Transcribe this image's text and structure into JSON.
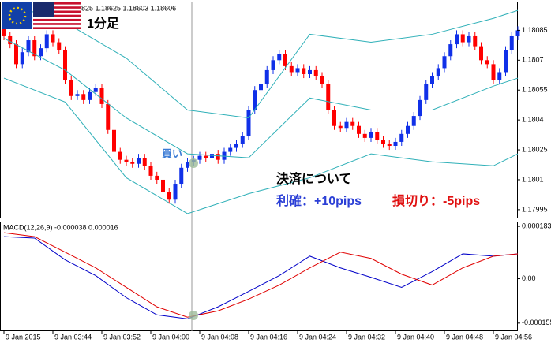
{
  "chart_data": [
    {
      "type": "candlestick",
      "header": "825 1.18625 1.18603 1.18606",
      "title": "1分足",
      "open": [
        1.18088,
        1.18082,
        1.18078,
        1.18068,
        1.18074,
        1.1808,
        1.18072,
        1.18076,
        1.18083,
        1.18079,
        1.18075,
        1.1806,
        1.18052,
        1.18053,
        1.1805,
        1.18054,
        1.18056,
        1.18048,
        1.18035,
        1.18024,
        1.1802,
        1.18019,
        1.18018,
        1.18021,
        1.18017,
        1.18012,
        1.1801,
        1.18004,
        1.18,
        1.18008,
        1.18016,
        1.18019,
        1.1802,
        1.18022,
        1.18021,
        1.18023,
        1.1802,
        1.18024,
        1.18026,
        1.18028,
        1.18032,
        1.18045,
        1.18055,
        1.18058,
        1.18065,
        1.1807,
        1.18073,
        1.18067,
        1.18064,
        1.18066,
        1.18063,
        1.18065,
        1.18062,
        1.18058,
        1.18045,
        1.18037,
        1.18036,
        1.18039,
        1.18037,
        1.18033,
        1.18031,
        1.18034,
        1.1803,
        1.18028,
        1.18027,
        1.18029,
        1.18033,
        1.18037,
        1.18042,
        1.1805,
        1.18058,
        1.18062,
        1.18066,
        1.18072,
        1.18078,
        1.18083,
        1.18079,
        1.18082,
        1.18077,
        1.1807,
        1.18068,
        1.1806,
        1.18064,
        1.18075,
        1.18082
      ],
      "high": [
        1.1809,
        1.18084,
        1.1808,
        1.18076,
        1.18082,
        1.18082,
        1.18078,
        1.18085,
        1.18085,
        1.18081,
        1.18077,
        1.18062,
        1.18055,
        1.18055,
        1.18056,
        1.18058,
        1.18058,
        1.1805,
        1.18037,
        1.18026,
        1.18022,
        1.18021,
        1.18023,
        1.18023,
        1.18019,
        1.18014,
        1.18012,
        1.18006,
        1.1801,
        1.18018,
        1.18021,
        1.18022,
        1.18024,
        1.18024,
        1.18025,
        1.18025,
        1.18026,
        1.18028,
        1.1803,
        1.18034,
        1.18047,
        1.18057,
        1.1806,
        1.18067,
        1.18072,
        1.18075,
        1.18075,
        1.18069,
        1.18068,
        1.18068,
        1.18067,
        1.18067,
        1.18064,
        1.1806,
        1.18047,
        1.18039,
        1.18041,
        1.18041,
        1.18039,
        1.18035,
        1.18036,
        1.18036,
        1.18032,
        1.1803,
        1.18031,
        1.18035,
        1.18039,
        1.18044,
        1.18052,
        1.1806,
        1.18064,
        1.18068,
        1.18074,
        1.1808,
        1.18085,
        1.18085,
        1.18084,
        1.18084,
        1.18079,
        1.18072,
        1.1807,
        1.18066,
        1.18077,
        1.18084,
        1.18087
      ],
      "low": [
        1.1808,
        1.18076,
        1.18066,
        1.18066,
        1.18072,
        1.1807,
        1.1807,
        1.18074,
        1.18077,
        1.18073,
        1.18058,
        1.1805,
        1.1805,
        1.18048,
        1.18048,
        1.18052,
        1.18046,
        1.18033,
        1.18022,
        1.18018,
        1.18017,
        1.18016,
        1.18016,
        1.18015,
        1.1801,
        1.18008,
        1.18002,
        1.17998,
        1.17998,
        1.18006,
        1.18014,
        1.18017,
        1.18018,
        1.18019,
        1.18019,
        1.18018,
        1.18018,
        1.18022,
        1.18024,
        1.18026,
        1.1803,
        1.18043,
        1.18053,
        1.18056,
        1.18063,
        1.18068,
        1.18065,
        1.18062,
        1.18062,
        1.18061,
        1.18061,
        1.1806,
        1.18056,
        1.18043,
        1.18035,
        1.18034,
        1.18034,
        1.18035,
        1.18031,
        1.18029,
        1.18029,
        1.18028,
        1.18026,
        1.18025,
        1.18025,
        1.18027,
        1.18031,
        1.18035,
        1.1804,
        1.18048,
        1.18056,
        1.1806,
        1.18064,
        1.1807,
        1.18076,
        1.18077,
        1.18077,
        1.18075,
        1.18068,
        1.18066,
        1.18058,
        1.18058,
        1.18062,
        1.18073,
        1.1808
      ],
      "close": [
        1.18082,
        1.18078,
        1.18068,
        1.18074,
        1.1808,
        1.18072,
        1.18076,
        1.18083,
        1.18079,
        1.18075,
        1.1806,
        1.18052,
        1.18053,
        1.1805,
        1.18054,
        1.18056,
        1.18048,
        1.18035,
        1.18024,
        1.1802,
        1.18019,
        1.18018,
        1.18021,
        1.18017,
        1.18012,
        1.1801,
        1.18004,
        1.18,
        1.18008,
        1.18016,
        1.18019,
        1.1802,
        1.18022,
        1.18021,
        1.18023,
        1.1802,
        1.18024,
        1.18026,
        1.18028,
        1.18032,
        1.18045,
        1.18055,
        1.18058,
        1.18065,
        1.1807,
        1.18073,
        1.18067,
        1.18064,
        1.18066,
        1.18063,
        1.18065,
        1.18062,
        1.18058,
        1.18045,
        1.18037,
        1.18036,
        1.18039,
        1.18037,
        1.18033,
        1.18031,
        1.18034,
        1.1803,
        1.18028,
        1.18027,
        1.18029,
        1.18033,
        1.18037,
        1.18042,
        1.1805,
        1.18058,
        1.18062,
        1.18066,
        1.18072,
        1.18078,
        1.18083,
        1.18079,
        1.18082,
        1.18077,
        1.1807,
        1.18068,
        1.1806,
        1.18064,
        1.18075,
        1.18082,
        1.18085
      ],
      "up_color": "#1030e8",
      "down_color": "#ff0000",
      "bands": {
        "color": "#2fb0b8",
        "x": [
          0,
          10,
          20,
          30,
          40,
          50,
          60,
          70,
          80,
          84
        ],
        "upper": [
          1.18099,
          1.18089,
          1.18071,
          1.18045,
          1.18041,
          1.18083,
          1.18079,
          1.18083,
          1.18091,
          1.18095
        ],
        "middle": [
          1.18081,
          1.18065,
          1.18041,
          1.18023,
          1.18021,
          1.18051,
          1.18045,
          1.18045,
          1.18057,
          1.18061
        ],
        "lower": [
          1.18061,
          1.18049,
          1.18011,
          1.17993,
          1.18003,
          1.18011,
          1.18023,
          1.18019,
          1.18017,
          1.18023
        ]
      },
      "ylim": [
        1.17991,
        1.18099
      ],
      "yticks": [
        1.18085,
        1.1807,
        1.18055,
        1.1804,
        1.18025,
        1.1801,
        1.17995
      ],
      "x_labels": [
        {
          "value": 0,
          "label": "9 Jan 2015"
        },
        {
          "value": 8,
          "label": "9 Jan 03:44"
        },
        {
          "value": 16,
          "label": "9 Jan 03:52"
        },
        {
          "value": 24,
          "label": "9 Jan 04:00"
        },
        {
          "value": 32,
          "label": "9 Jan 04:08"
        },
        {
          "value": 40,
          "label": "9 Jan 04:16"
        },
        {
          "value": 48,
          "label": "9 Jan 04:24"
        },
        {
          "value": 56,
          "label": "9 Jan 04:32"
        },
        {
          "value": 64,
          "label": "9 Jan 04:40"
        },
        {
          "value": 72,
          "label": "9 Jan 04:48"
        },
        {
          "value": 80,
          "label": "9 Jan 04:56"
        }
      ],
      "annotations": {
        "buy": "買い",
        "heading": "決済について",
        "take_profit": "利確：+10pips",
        "stop_loss": "損切り：-5pips"
      }
    },
    {
      "type": "line",
      "title": "MACD(12,26,9) -0.000038 0.000016",
      "x": [
        0,
        5,
        10,
        15,
        20,
        25,
        30,
        35,
        40,
        45,
        50,
        55,
        60,
        65,
        70,
        75,
        80,
        84
      ],
      "series": [
        {
          "color": "#0000c8",
          "values": [
            0.000147,
            0.000142,
            6.6e-05,
            1.1e-05,
            -6.6e-05,
            -0.000126,
            -0.00014,
            -9.8e-05,
            -4.4e-05,
            1.1e-05,
            7.9e-05,
            3.8e-05,
            5e-06,
            -3e-05,
            2.5e-05,
            8.7e-05,
            7.9e-05,
            8.7e-05
          ]
        },
        {
          "color": "#e00000",
          "values": [
            0.000161,
            0.000147,
            9.3e-05,
            3.8e-05,
            -3e-05,
            -9.8e-05,
            -0.000134,
            -0.000112,
            -7.1e-05,
            -2.2e-05,
            3.8e-05,
            9.3e-05,
            7.1e-05,
            1.6e-05,
            -2.2e-05,
            3.8e-05,
            7.9e-05,
            8.7e-05
          ]
        }
      ],
      "ylim": [
        -0.000183,
        0.000197
      ],
      "yticks": [
        0.000183,
        {
          "value": 0,
          "label": "0.00"
        },
        -0.000155
      ]
    }
  ]
}
